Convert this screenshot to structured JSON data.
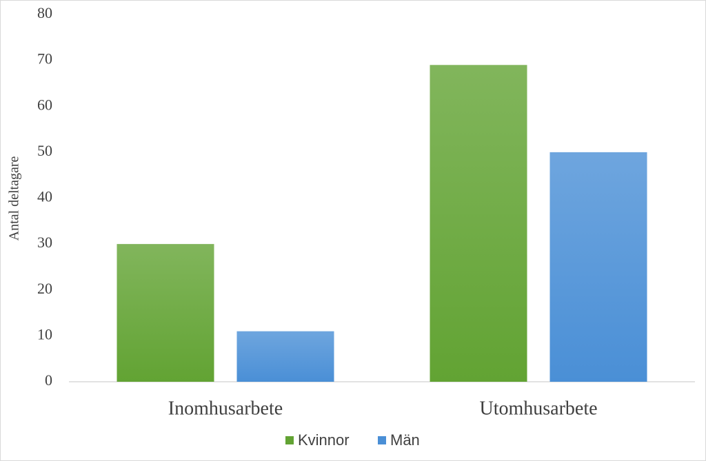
{
  "chart_data": {
    "type": "bar",
    "y_label": "Antal deltagare",
    "categories": [
      "Inomhusarbete",
      "Utomhusarbete"
    ],
    "series": [
      {
        "name": "Kvinnor",
        "color": "#62a333",
        "values": [
          30,
          69
        ]
      },
      {
        "name": "Män",
        "color": "#4a8fd6",
        "values": [
          11,
          50
        ]
      }
    ],
    "ylim": [
      0,
      80
    ],
    "yticks": [
      0,
      10,
      20,
      30,
      40,
      50,
      60,
      70,
      80
    ],
    "grid": false,
    "legend": "bottom"
  }
}
